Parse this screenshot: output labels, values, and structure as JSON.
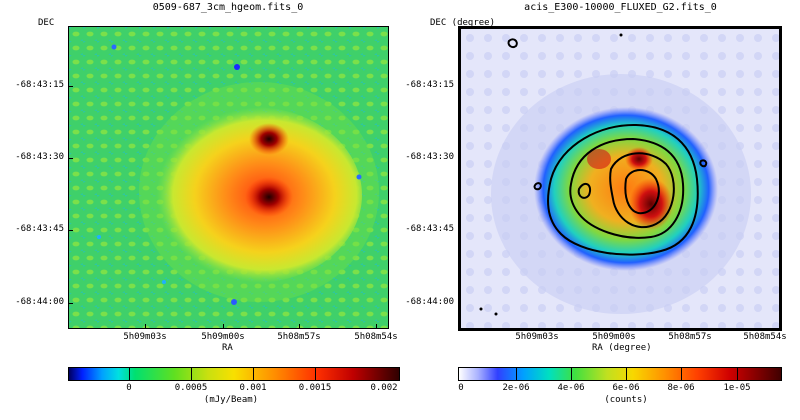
{
  "panels": [
    {
      "title": "0509-687_3cm_hgeom.fits_0",
      "y_axis_label": "DEC",
      "x_axis_label": "RA",
      "y_ticks": [
        "-68:43:15",
        "-68:43:30",
        "-68:43:45",
        "-68:44:00"
      ],
      "x_ticks": [
        "5h09m03s",
        "5h09m00s",
        "5h08m57s",
        "5h08m54s"
      ],
      "colorbar": {
        "labels": [
          "0",
          "0.0005",
          "0.001",
          "0.0015",
          "0.002"
        ],
        "unit": "(mJy/Beam)"
      }
    },
    {
      "title": "acis_E300-10000_FLUXED_G2.fits_0",
      "y_axis_label": "DEC (degree)",
      "x_axis_label": "RA (degree)",
      "y_ticks": [
        "-68:43:15",
        "-68:43:30",
        "-68:43:45",
        "-68:44:00"
      ],
      "x_ticks": [
        "5h09m03s",
        "5h09m00s",
        "5h08m57s",
        "5h08m54s"
      ],
      "colorbar": {
        "labels": [
          "0",
          "2e-06",
          "4e-06",
          "6e-06",
          "8e-06",
          "1e-05"
        ],
        "unit": "(counts)"
      }
    }
  ]
}
